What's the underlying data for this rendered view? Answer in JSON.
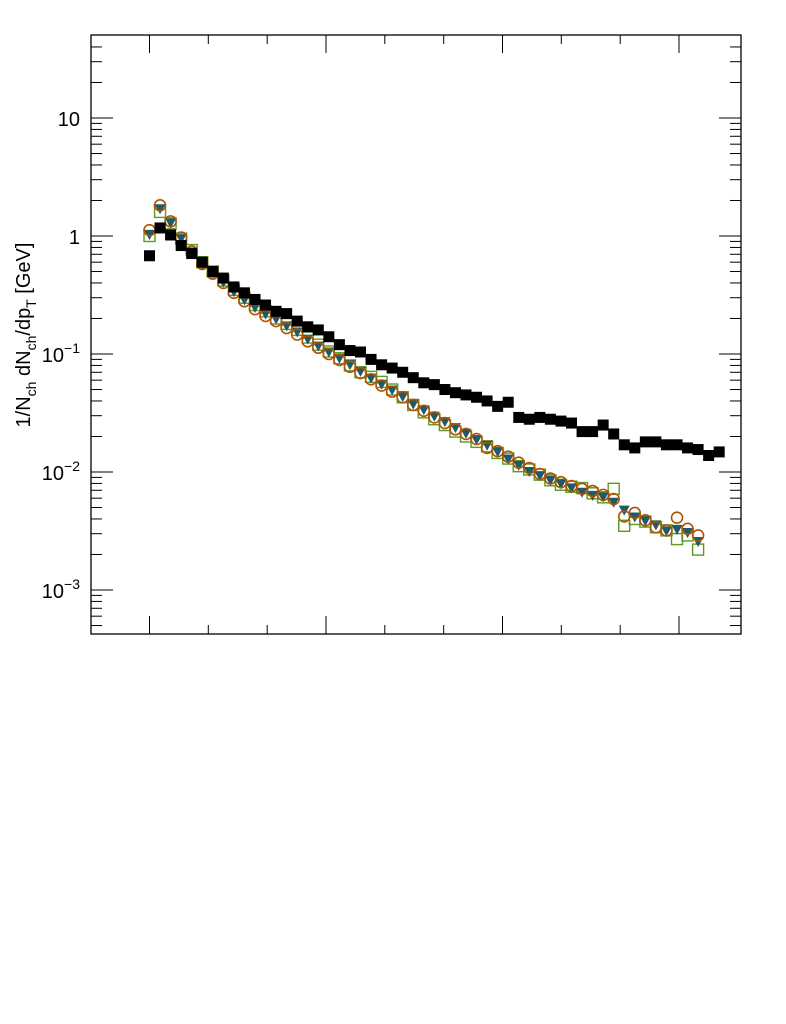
{
  "chart_data": {
    "type": "scatter",
    "title": "",
    "xlabel": "",
    "ylabel": "1/N_ch dN_ch/dp_T [GeV]",
    "ylabel_parts": {
      "main1": "1/N",
      "sub1": "ch",
      "main2": " dN",
      "sub2": "ch",
      "main3": "/dp",
      "sub3": "T",
      "main4": " [GeV]"
    },
    "yscale": "log",
    "ylim": [
      0.0004,
      45
    ],
    "xlim": [
      0,
      55.5
    ],
    "x_tick_labels": "none",
    "y_tick_labels": [
      {
        "value": 0.001,
        "base": "10",
        "exp": "−3"
      },
      {
        "value": 0.01,
        "base": "10",
        "exp": "−2"
      },
      {
        "value": 0.1,
        "base": "10",
        "exp": "−1"
      },
      {
        "value": 1,
        "base": "1",
        "exp": ""
      },
      {
        "value": 10,
        "base": "10",
        "exp": ""
      }
    ],
    "grid": false,
    "legend": "none",
    "series": [
      {
        "marker": "filled-square",
        "color": "#000000",
        "points": [
          [
            0,
            0.68
          ],
          [
            1,
            1.17
          ],
          [
            2,
            1.02
          ],
          [
            3,
            0.83
          ],
          [
            4,
            0.71
          ],
          [
            5,
            0.6
          ],
          [
            6,
            0.5
          ],
          [
            7,
            0.44
          ],
          [
            8,
            0.37
          ],
          [
            9,
            0.33
          ],
          [
            10,
            0.29
          ],
          [
            11,
            0.26
          ],
          [
            12,
            0.23
          ],
          [
            13,
            0.22
          ],
          [
            14,
            0.19
          ],
          [
            15,
            0.17
          ],
          [
            16,
            0.16
          ],
          [
            17,
            0.14
          ],
          [
            18,
            0.12
          ],
          [
            19,
            0.107
          ],
          [
            20,
            0.104
          ],
          [
            21,
            0.09
          ],
          [
            22,
            0.081
          ],
          [
            23,
            0.076
          ],
          [
            24,
            0.07
          ],
          [
            25,
            0.063
          ],
          [
            26,
            0.057
          ],
          [
            27,
            0.055
          ],
          [
            28,
            0.05
          ],
          [
            29,
            0.047
          ],
          [
            30,
            0.045
          ],
          [
            31,
            0.043
          ],
          [
            32,
            0.04
          ],
          [
            33,
            0.036
          ],
          [
            34,
            0.039
          ],
          [
            35,
            0.029
          ],
          [
            36,
            0.028
          ],
          [
            37,
            0.029
          ],
          [
            38,
            0.028
          ],
          [
            39,
            0.027
          ],
          [
            40,
            0.026
          ],
          [
            41,
            0.022
          ],
          [
            42,
            0.022
          ],
          [
            43,
            0.025
          ],
          [
            44,
            0.021
          ],
          [
            45,
            0.017
          ],
          [
            46,
            0.016
          ],
          [
            47,
            0.018
          ],
          [
            48,
            0.018
          ],
          [
            49,
            0.017
          ],
          [
            50,
            0.017
          ],
          [
            51,
            0.016
          ],
          [
            52,
            0.0155
          ],
          [
            53,
            0.0138
          ],
          [
            54,
            0.0148
          ]
        ]
      },
      {
        "marker": "open-circle",
        "color": "#b15300",
        "points": [
          [
            0,
            1.12
          ],
          [
            1,
            1.82
          ],
          [
            2,
            1.33
          ],
          [
            3,
            0.97
          ],
          [
            4,
            0.74
          ],
          [
            5,
            0.58
          ],
          [
            6,
            0.48
          ],
          [
            7,
            0.4
          ],
          [
            8,
            0.33
          ],
          [
            9,
            0.28
          ],
          [
            10,
            0.24
          ],
          [
            11,
            0.21
          ],
          [
            12,
            0.19
          ],
          [
            13,
            0.166
          ],
          [
            14,
            0.146
          ],
          [
            15,
            0.128
          ],
          [
            16,
            0.113
          ],
          [
            17,
            0.1
          ],
          [
            18,
            0.089
          ],
          [
            19,
            0.078
          ],
          [
            20,
            0.069
          ],
          [
            21,
            0.061
          ],
          [
            22,
            0.054
          ],
          [
            23,
            0.048
          ],
          [
            24,
            0.043
          ],
          [
            25,
            0.037
          ],
          [
            26,
            0.033
          ],
          [
            27,
            0.029
          ],
          [
            28,
            0.026
          ],
          [
            29,
            0.023
          ],
          [
            30,
            0.021
          ],
          [
            31,
            0.019
          ],
          [
            32,
            0.016
          ],
          [
            33,
            0.015
          ],
          [
            34,
            0.0135
          ],
          [
            35,
            0.012
          ],
          [
            36,
            0.0108
          ],
          [
            37,
            0.0096
          ],
          [
            38,
            0.0088
          ],
          [
            39,
            0.0082
          ],
          [
            40,
            0.0076
          ],
          [
            41,
            0.0072
          ],
          [
            42,
            0.0069
          ],
          [
            43,
            0.0064
          ],
          [
            44,
            0.0059
          ],
          [
            45,
            0.0042
          ],
          [
            46,
            0.0045
          ],
          [
            47,
            0.0039
          ],
          [
            48,
            0.0034
          ],
          [
            49,
            0.0032
          ],
          [
            50,
            0.0041
          ],
          [
            51,
            0.0033
          ],
          [
            52,
            0.0029
          ]
        ]
      },
      {
        "marker": "filled-triangle-down",
        "color": "#1f5a66",
        "points": [
          [
            0,
            1.04
          ],
          [
            1,
            1.72
          ],
          [
            2,
            1.3
          ],
          [
            3,
            0.96
          ],
          [
            4,
            0.74
          ],
          [
            5,
            0.58
          ],
          [
            6,
            0.49
          ],
          [
            7,
            0.41
          ],
          [
            8,
            0.34
          ],
          [
            9,
            0.29
          ],
          [
            10,
            0.25
          ],
          [
            11,
            0.22
          ],
          [
            12,
            0.2
          ],
          [
            13,
            0.175
          ],
          [
            14,
            0.155
          ],
          [
            15,
            0.135
          ],
          [
            16,
            0.118
          ],
          [
            17,
            0.105
          ],
          [
            18,
            0.093
          ],
          [
            19,
            0.082
          ],
          [
            20,
            0.072
          ],
          [
            21,
            0.063
          ],
          [
            22,
            0.056
          ],
          [
            23,
            0.05
          ],
          [
            24,
            0.044
          ],
          [
            25,
            0.038
          ],
          [
            26,
            0.034
          ],
          [
            27,
            0.03
          ],
          [
            28,
            0.027
          ],
          [
            29,
            0.024
          ],
          [
            30,
            0.0215
          ],
          [
            31,
            0.019
          ],
          [
            32,
            0.017
          ],
          [
            33,
            0.015
          ],
          [
            34,
            0.013
          ],
          [
            35,
            0.0115
          ],
          [
            36,
            0.0102
          ],
          [
            37,
            0.0094
          ],
          [
            38,
            0.0086
          ],
          [
            39,
            0.008
          ],
          [
            40,
            0.0074
          ],
          [
            41,
            0.0068
          ],
          [
            42,
            0.0064
          ],
          [
            43,
            0.0062
          ],
          [
            44,
            0.0056
          ],
          [
            45,
            0.0048
          ],
          [
            46,
            0.0042
          ],
          [
            47,
            0.0039
          ],
          [
            48,
            0.0036
          ],
          [
            49,
            0.0032
          ],
          [
            50,
            0.0033
          ],
          [
            51,
            0.0031
          ],
          [
            52,
            0.0026
          ]
        ]
      },
      {
        "marker": "open-square",
        "color": "#5a9a20",
        "points": [
          [
            0,
            1.0
          ],
          [
            1,
            1.6
          ],
          [
            2,
            1.28
          ],
          [
            3,
            0.95
          ],
          [
            4,
            0.76
          ],
          [
            5,
            0.6
          ],
          [
            6,
            0.5
          ],
          [
            7,
            0.42
          ],
          [
            8,
            0.35
          ],
          [
            9,
            0.3
          ],
          [
            10,
            0.26
          ],
          [
            11,
            0.23
          ],
          [
            12,
            0.2
          ],
          [
            13,
            0.18
          ],
          [
            14,
            0.16
          ],
          [
            15,
            0.138
          ],
          [
            16,
            0.12
          ],
          [
            17,
            0.105
          ],
          [
            18,
            0.092
          ],
          [
            19,
            0.08
          ],
          [
            20,
            0.07
          ],
          [
            21,
            0.064
          ],
          [
            22,
            0.058
          ],
          [
            23,
            0.05
          ],
          [
            24,
            0.043
          ],
          [
            25,
            0.037
          ],
          [
            26,
            0.032
          ],
          [
            27,
            0.028
          ],
          [
            28,
            0.025
          ],
          [
            29,
            0.022
          ],
          [
            30,
            0.02
          ],
          [
            31,
            0.018
          ],
          [
            32,
            0.0165
          ],
          [
            33,
            0.0145
          ],
          [
            34,
            0.013
          ],
          [
            35,
            0.0112
          ],
          [
            36,
            0.0105
          ],
          [
            37,
            0.0095
          ],
          [
            38,
            0.0085
          ],
          [
            39,
            0.0078
          ],
          [
            40,
            0.0075
          ],
          [
            41,
            0.0073
          ],
          [
            42,
            0.0066
          ],
          [
            43,
            0.0061
          ],
          [
            44,
            0.0072
          ],
          [
            45,
            0.0035
          ],
          [
            46,
            0.004
          ],
          [
            47,
            0.0038
          ],
          [
            48,
            0.0034
          ],
          [
            49,
            0.0032
          ],
          [
            50,
            0.0027
          ],
          [
            51,
            0.0029
          ],
          [
            52,
            0.0022
          ]
        ]
      }
    ]
  }
}
